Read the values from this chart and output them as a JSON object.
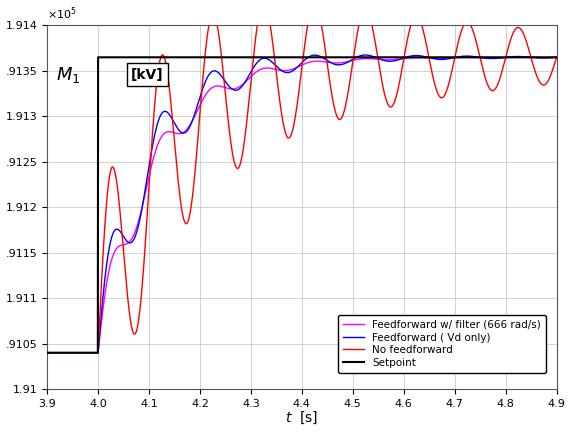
{
  "xlim": [
    3.9,
    4.9
  ],
  "ylim": [
    191000.0,
    191400.0
  ],
  "ytick_vals": [
    191000.0,
    191050.0,
    191100.0,
    191150.0,
    191200.0,
    191250.0,
    191300.0,
    191350.0,
    191400.0
  ],
  "ytick_labels": [
    "1.91",
    ".9105",
    "1.911",
    ".9115",
    "1.912",
    ".9125",
    "1.913",
    ".9135",
    "1.914"
  ],
  "xtick_vals": [
    3.9,
    4.0,
    4.1,
    4.2,
    4.3,
    4.4,
    4.5,
    4.6,
    4.7,
    4.8,
    4.9
  ],
  "t_step": 4.0,
  "y_low": 191040.0,
  "y_high": 191365.0,
  "y_setpoint_high": 191365.0,
  "legend_labels": [
    "Setpoint",
    "No feedforward",
    "Feedforward ( Vd only)",
    "Feedforward w/ filter (666 rad/s)"
  ],
  "colors": {
    "setpoint": "#000000",
    "no_feedforward": "#ff0000",
    "feedforward": "#0000ff",
    "filtered": "#ff00ff"
  },
  "linewidth": 1.0,
  "background_color": "#ffffff",
  "grid_color": "#c0c0c0",
  "label_text": "$M_1$  [kV]"
}
